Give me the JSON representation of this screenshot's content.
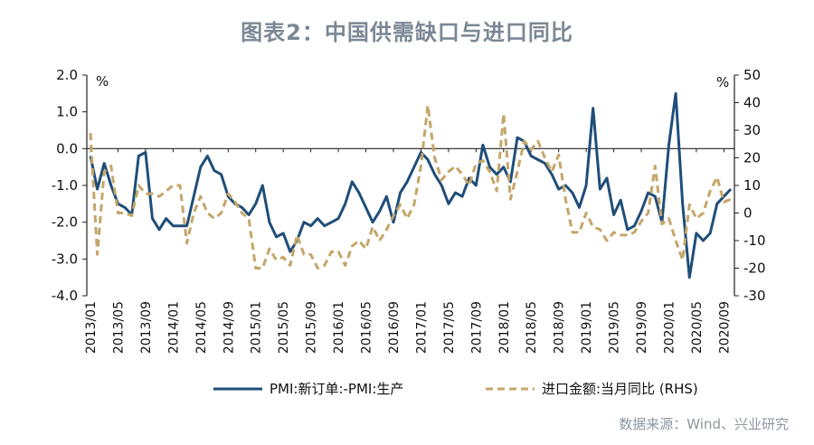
{
  "title": "图表2：中国供需缺口与进口同比",
  "source": "数据来源：Wind、兴业研究",
  "chart_data": {
    "type": "line",
    "left_unit": "%",
    "right_unit": "%",
    "y_left_range": [
      -4,
      2
    ],
    "y_left_ticks": [
      "2.0",
      "1.0",
      "0.0",
      "-1.0",
      "-2.0",
      "-3.0",
      "-4.0"
    ],
    "y_right_range": [
      -30,
      50
    ],
    "y_right_ticks": [
      "50",
      "40",
      "30",
      "20",
      "10",
      "0",
      "-10",
      "-20",
      "-30"
    ],
    "x_tick_labels": [
      "2013/01",
      "2013/05",
      "2013/09",
      "2014/01",
      "2014/05",
      "2014/09",
      "2015/01",
      "2015/05",
      "2015/09",
      "2016/01",
      "2016/05",
      "2016/09",
      "2017/01",
      "2017/05",
      "2017/09",
      "2018/01",
      "2018/05",
      "2018/09",
      "2019/01",
      "2019/05",
      "2019/09",
      "2020/01",
      "2020/05",
      "2020/09"
    ],
    "x_start": "2013/01",
    "x_end": "2020/10",
    "grid": false,
    "legend_position": "bottom",
    "series": [
      {
        "name": "PMI:新订单:-PMI:生产",
        "axis": "left",
        "color": "#1f4e79",
        "style": "solid",
        "values": [
          -0.2,
          -1.1,
          -0.4,
          -1.0,
          -1.5,
          -1.6,
          -1.8,
          -0.2,
          -0.1,
          -1.9,
          -2.2,
          -1.9,
          -2.1,
          -2.1,
          -2.1,
          -1.3,
          -0.5,
          -0.2,
          -0.6,
          -0.7,
          -1.3,
          -1.5,
          -1.6,
          -1.8,
          -1.5,
          -1.0,
          -2.0,
          -2.4,
          -2.3,
          -2.8,
          -2.5,
          -2.0,
          -2.1,
          -1.9,
          -2.1,
          -2.0,
          -1.9,
          -1.5,
          -0.9,
          -1.2,
          -1.6,
          -2.0,
          -1.7,
          -1.3,
          -2.0,
          -1.2,
          -0.9,
          -0.5,
          -0.1,
          -0.3,
          -0.7,
          -1.0,
          -1.5,
          -1.2,
          -1.3,
          -0.8,
          -1.0,
          0.1,
          -0.5,
          -0.7,
          -0.5,
          -0.9,
          0.3,
          0.2,
          -0.2,
          -0.3,
          -0.4,
          -0.7,
          -1.1,
          -1.0,
          -1.2,
          -1.6,
          -1.0,
          1.1,
          -1.1,
          -0.8,
          -1.8,
          -1.4,
          -2.2,
          -2.1,
          -1.7,
          -1.2,
          -1.3,
          -2.0,
          0.1,
          1.5,
          -1.5,
          -3.5,
          -2.3,
          -2.5,
          -2.3,
          -1.5,
          -1.3,
          -1.1
        ]
      },
      {
        "name": "进口金额:当月同比 (RHS)",
        "axis": "right",
        "color": "#c4a66a",
        "style": "dashed",
        "values": [
          29,
          -15,
          15,
          17,
          0,
          0,
          -1,
          10,
          7,
          7,
          6,
          8,
          10,
          10,
          -11,
          0,
          6,
          0,
          -2,
          0,
          7,
          4,
          0,
          -2,
          -20,
          -20,
          -13,
          -17,
          -16,
          -19,
          -8,
          -15,
          -15,
          -20,
          -19,
          -14,
          -14,
          -19,
          -12,
          -10,
          -13,
          -5,
          -10,
          -6,
          -1,
          3,
          -2,
          3,
          17,
          39,
          20,
          12,
          15,
          17,
          14,
          10,
          18,
          19,
          15,
          8,
          36,
          5,
          15,
          26,
          23,
          26,
          20,
          15,
          21,
          5,
          -7,
          -7,
          0,
          -5,
          -6,
          -10,
          -7,
          -8,
          -8,
          -7,
          -3,
          0,
          17,
          -4,
          -2,
          -10,
          -17,
          3,
          -2,
          0,
          8,
          13,
          4,
          5
        ]
      }
    ]
  }
}
